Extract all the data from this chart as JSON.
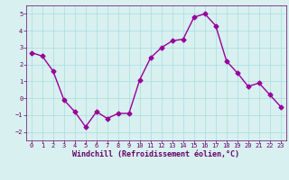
{
  "x": [
    0,
    1,
    2,
    3,
    4,
    5,
    6,
    7,
    8,
    9,
    10,
    11,
    12,
    13,
    14,
    15,
    16,
    17,
    18,
    19,
    20,
    21,
    22,
    23
  ],
  "y": [
    2.7,
    2.5,
    1.6,
    -0.1,
    -0.8,
    -1.7,
    -0.8,
    -1.2,
    -0.9,
    -0.9,
    1.1,
    2.4,
    3.0,
    3.4,
    3.5,
    4.8,
    5.0,
    4.3,
    2.2,
    1.5,
    0.7,
    0.9,
    0.2,
    -0.5
  ],
  "line_color": "#990099",
  "marker_color": "#990099",
  "bg_color": "#d8f0f0",
  "grid_color": "#aadddd",
  "xlabel": "Windchill (Refroidissement éolien,°C)",
  "xlim": [
    -0.5,
    23.5
  ],
  "ylim": [
    -2.5,
    5.5
  ],
  "yticks": [
    -2,
    -1,
    0,
    1,
    2,
    3,
    4,
    5
  ],
  "xticks": [
    0,
    1,
    2,
    3,
    4,
    5,
    6,
    7,
    8,
    9,
    10,
    11,
    12,
    13,
    14,
    15,
    16,
    17,
    18,
    19,
    20,
    21,
    22,
    23
  ],
  "axis_color": "#660066",
  "tick_label_color": "#660066",
  "xlabel_color": "#660066",
  "grid_linewidth": 0.5,
  "line_linewidth": 1.0,
  "marker_size": 2.5,
  "tick_fontsize": 5.0,
  "xlabel_fontsize": 6.0
}
